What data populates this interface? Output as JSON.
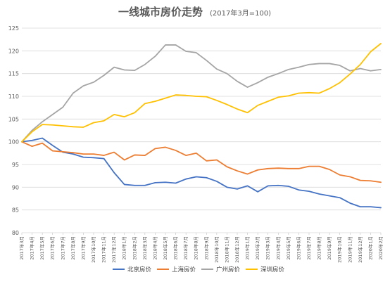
{
  "chart_data": {
    "type": "line",
    "title": "一线城市房价走势",
    "subtitle": "(2017年3月=100)",
    "xlabel": "",
    "ylabel": "",
    "ylim": [
      80,
      125
    ],
    "yticks": [
      80,
      85,
      90,
      95,
      100,
      105,
      110,
      115,
      120,
      125
    ],
    "grid": true,
    "legend_position": "bottom",
    "categories": [
      "2017年3月",
      "2017年4月",
      "2017年5月",
      "2017年6月",
      "2017年7月",
      "2017年8月",
      "2017年9月",
      "2017年10月",
      "2017年11月",
      "2017年12月",
      "2018年1月",
      "2018年2月",
      "2018年3月",
      "2018年4月",
      "2018年5月",
      "2018年6月",
      "2018年7月",
      "2018年8月",
      "2018年9月",
      "2018年10月",
      "2018年11月",
      "2018年12月",
      "2019年1月",
      "2019年2月",
      "2019年3月",
      "2019年4月",
      "2019年5月",
      "2019年6月",
      "2019年7月",
      "2019年8月",
      "2019年9月",
      "2019年10月",
      "2019年11月",
      "2019年12月",
      "2020年1月",
      "2020年2月"
    ],
    "series": [
      {
        "name": "北京房价",
        "color": "#4472c4",
        "values": [
          100,
          100.3,
          100.8,
          99.2,
          97.7,
          97.3,
          96.6,
          96.5,
          96.3,
          93.2,
          90.6,
          90.4,
          90.4,
          91.0,
          91.1,
          90.9,
          91.8,
          92.3,
          92.1,
          91.3,
          90.0,
          89.6,
          90.3,
          89.0,
          90.3,
          90.4,
          90.2,
          89.4,
          89.1,
          88.5,
          88.1,
          87.7,
          86.5,
          85.7,
          85.7,
          85.5
        ]
      },
      {
        "name": "上海房价",
        "color": "#ed7d31",
        "values": [
          100,
          99.0,
          99.7,
          98.0,
          97.8,
          97.6,
          97.3,
          97.3,
          97.0,
          97.7,
          96.0,
          97.1,
          97.0,
          98.5,
          98.8,
          98.1,
          97.0,
          97.5,
          95.8,
          96.0,
          94.5,
          93.6,
          92.9,
          93.8,
          94.1,
          94.2,
          94.1,
          94.1,
          94.6,
          94.6,
          93.9,
          92.7,
          92.3,
          91.5,
          91.4,
          91.1
        ]
      },
      {
        "name": "广州房价",
        "color": "#a5a5a5",
        "values": [
          100,
          102.5,
          104.4,
          106.0,
          107.6,
          110.7,
          112.3,
          113.1,
          114.6,
          116.4,
          115.8,
          115.7,
          117.0,
          118.8,
          121.3,
          121.3,
          119.9,
          119.6,
          117.9,
          116.0,
          115.0,
          113.3,
          112.0,
          113.0,
          114.2,
          115.0,
          115.9,
          116.4,
          117.0,
          117.2,
          117.2,
          116.8,
          115.6,
          116.1,
          115.6,
          115.9
        ]
      },
      {
        "name": "深圳房价",
        "color": "#ffc000",
        "values": [
          100,
          102.2,
          103.8,
          103.7,
          103.5,
          103.3,
          103.2,
          104.2,
          104.6,
          106.0,
          105.5,
          106.4,
          108.4,
          108.9,
          109.6,
          110.3,
          110.2,
          110.0,
          109.9,
          109.1,
          108.2,
          107.2,
          106.4,
          108.0,
          108.9,
          109.8,
          110.1,
          110.7,
          110.8,
          110.7,
          111.7,
          113.0,
          114.9,
          117.0,
          119.8,
          121.6
        ]
      }
    ]
  }
}
